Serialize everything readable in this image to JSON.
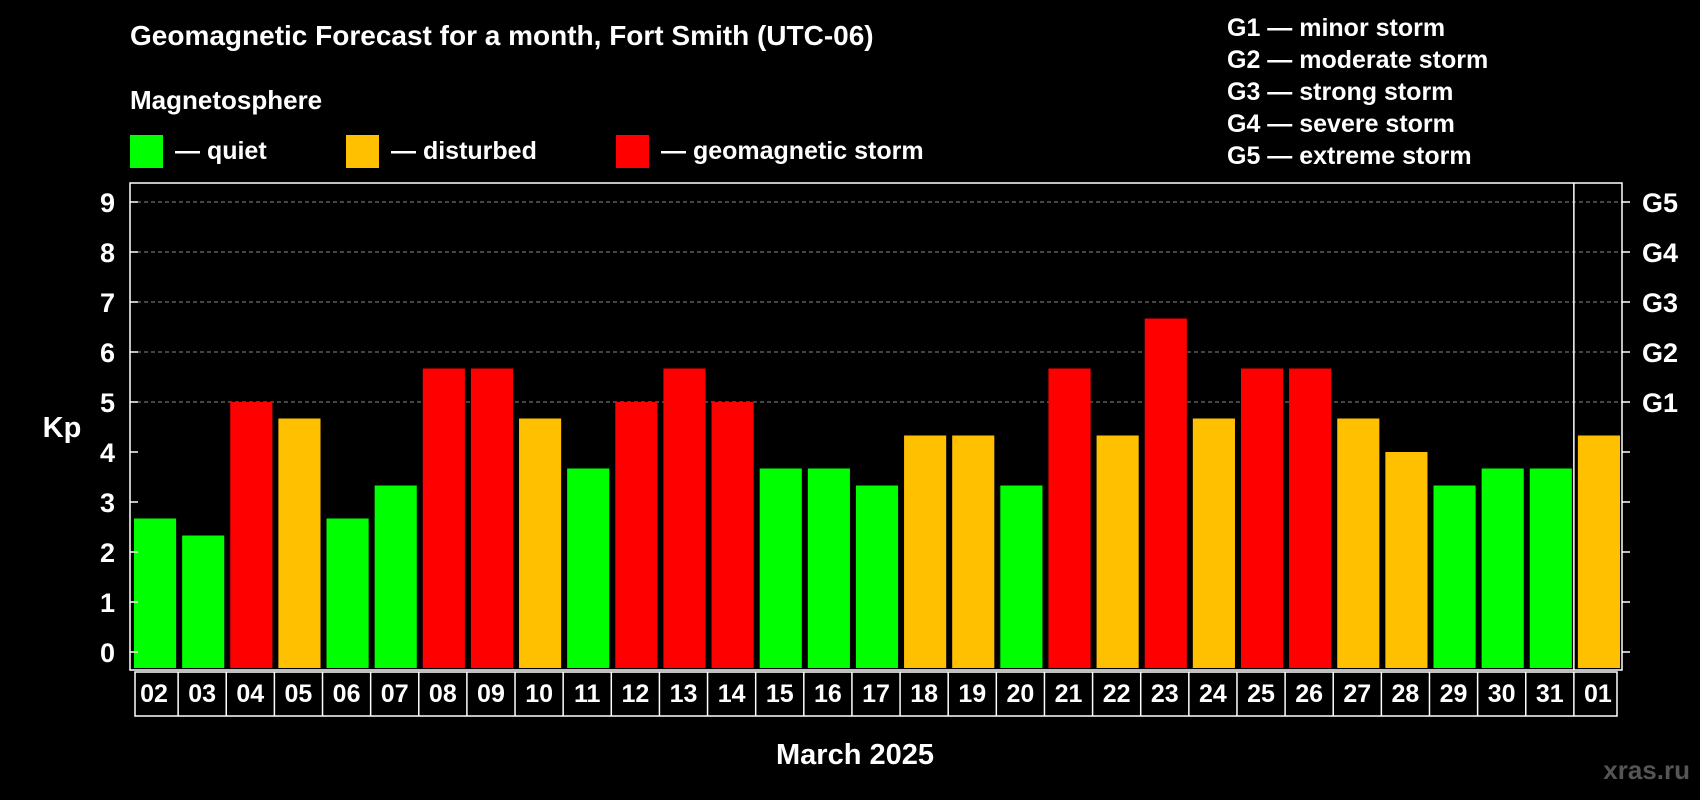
{
  "colors": {
    "quiet": "#00ff00",
    "disturbed": "#ffc000",
    "storm": "#ff0000",
    "background": "#000000",
    "grid": "#888888",
    "watermark": "#555555"
  },
  "title": "Geomagnetic Forecast for a month, Fort Smith (UTC-06)",
  "magnetosphere": {
    "heading": "Magnetosphere",
    "quiet_label": "— quiet",
    "disturbed_label": "— disturbed",
    "storm_label": "— geomagnetic storm"
  },
  "storm_levels": [
    "G1 — minor storm",
    "G2 — moderate storm",
    "G3 — strong storm",
    "G4 — severe storm",
    "G5 — extreme storm"
  ],
  "watermark": "xras.ru",
  "chart_data": {
    "type": "bar",
    "title": "Geomagnetic Forecast for a month, Fort Smith (UTC-06)",
    "xlabel": "March 2025",
    "ylabel": "Kp",
    "ylim": [
      0,
      9
    ],
    "yticks": [
      "0",
      "1",
      "2",
      "3",
      "4",
      "5",
      "6",
      "7",
      "8",
      "9"
    ],
    "right_axis_labels": [
      {
        "kp": 5,
        "label": "G1"
      },
      {
        "kp": 6,
        "label": "G2"
      },
      {
        "kp": 7,
        "label": "G3"
      },
      {
        "kp": 8,
        "label": "G4"
      },
      {
        "kp": 9,
        "label": "G5"
      }
    ],
    "gridlines": [
      5,
      6,
      7,
      8,
      9
    ],
    "categories": [
      "02",
      "03",
      "04",
      "05",
      "06",
      "07",
      "08",
      "09",
      "10",
      "11",
      "12",
      "13",
      "14",
      "15",
      "16",
      "17",
      "18",
      "19",
      "20",
      "21",
      "22",
      "23",
      "24",
      "25",
      "26",
      "27",
      "28",
      "29",
      "30",
      "31",
      "01"
    ],
    "values": [
      2.67,
      2.33,
      5.0,
      4.67,
      2.67,
      3.33,
      5.67,
      5.67,
      4.67,
      3.67,
      5.0,
      5.67,
      5.0,
      3.67,
      3.67,
      3.33,
      4.33,
      4.33,
      3.33,
      5.67,
      4.33,
      6.67,
      4.67,
      5.67,
      5.67,
      4.67,
      4.0,
      3.33,
      3.67,
      3.67,
      4.33
    ],
    "levels": [
      "quiet",
      "quiet",
      "storm",
      "disturbed",
      "quiet",
      "quiet",
      "storm",
      "storm",
      "disturbed",
      "quiet",
      "storm",
      "storm",
      "storm",
      "quiet",
      "quiet",
      "quiet",
      "disturbed",
      "disturbed",
      "quiet",
      "storm",
      "disturbed",
      "storm",
      "disturbed",
      "storm",
      "storm",
      "disturbed",
      "disturbed",
      "quiet",
      "quiet",
      "quiet",
      "disturbed"
    ]
  }
}
